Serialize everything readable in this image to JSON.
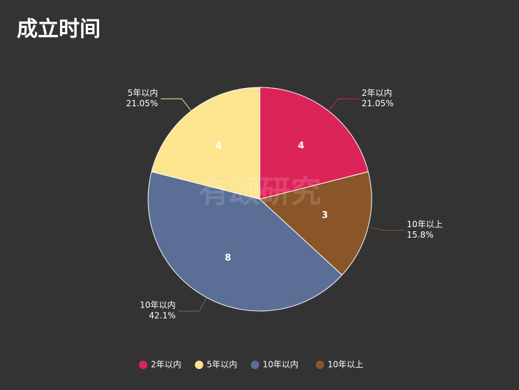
{
  "chart_data": {
    "type": "pie",
    "title": "成立时间",
    "watermark": "有颂研究",
    "categories": [
      "2年以内",
      "5年以内",
      "10年以内",
      "10年以上"
    ],
    "values": [
      4,
      4,
      8,
      3
    ],
    "percent_labels": [
      "21.05%",
      "21.05%",
      "42.1%",
      "15.8%"
    ],
    "colors": [
      "#dc2359",
      "#fde48f",
      "#5a6e96",
      "#8a5529"
    ],
    "legend": "bottom"
  }
}
